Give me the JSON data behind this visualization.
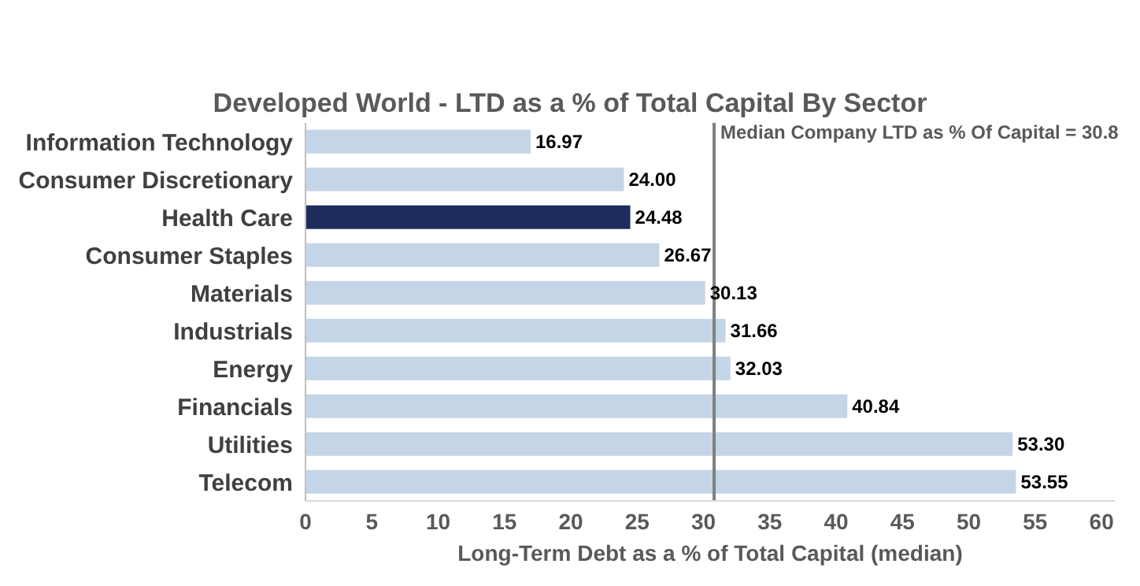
{
  "chart_data": {
    "type": "bar",
    "orientation": "horizontal",
    "title": "Developed World - LTD as a % of Total Capital By Sector",
    "xlabel": "Long-Term Debt as a % of Total Capital (median)",
    "categories": [
      "Information Technology",
      "Consumer Discretionary",
      "Health Care",
      "Consumer Staples",
      "Materials",
      "Industrials",
      "Energy",
      "Financials",
      "Utilities",
      "Telecom"
    ],
    "values": [
      16.97,
      24.0,
      24.48,
      26.67,
      30.13,
      31.66,
      32.03,
      40.84,
      53.3,
      53.55
    ],
    "value_labels": [
      "16.97",
      "24.00",
      "24.48",
      "26.67",
      "30.13",
      "31.66",
      "32.03",
      "40.84",
      "53.30",
      "53.55"
    ],
    "colors": [
      "#c5d5e8",
      "#c5d5e8",
      "#1f2d5c",
      "#c5d5e8",
      "#c5d5e8",
      "#c5d5e8",
      "#c5d5e8",
      "#c5d5e8",
      "#c5d5e8",
      "#c5d5e8"
    ],
    "xlim": [
      0,
      61
    ],
    "xticks": [
      0,
      5,
      10,
      15,
      20,
      25,
      30,
      35,
      40,
      45,
      50,
      55,
      60
    ],
    "ref_lines": [
      {
        "axis": "x",
        "value": 30.8,
        "label": "Median Company LTD as % Of Capital = 30.8",
        "color": "#808080"
      }
    ],
    "grid": false
  }
}
